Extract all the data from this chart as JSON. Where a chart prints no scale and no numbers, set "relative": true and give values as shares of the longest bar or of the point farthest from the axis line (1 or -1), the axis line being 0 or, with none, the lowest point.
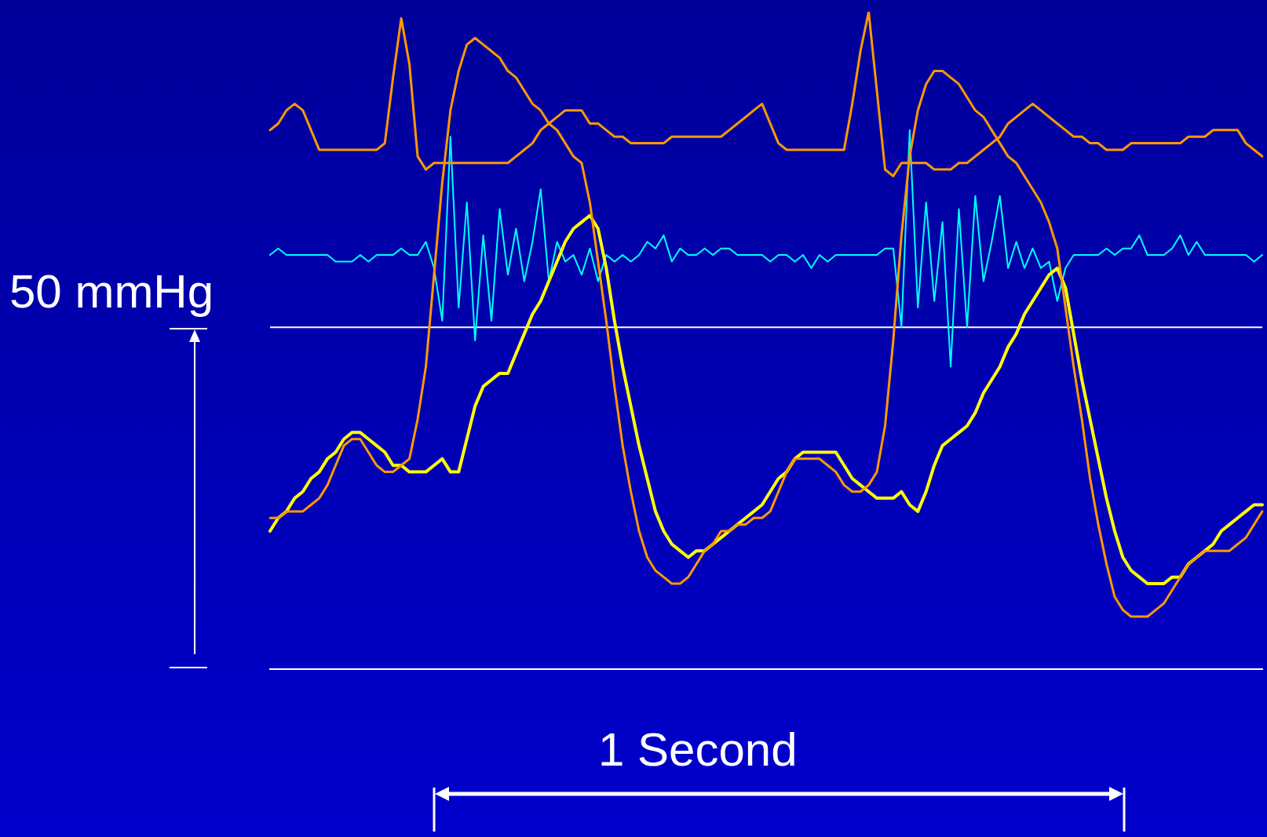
{
  "chart_data": {
    "type": "line",
    "relative": true,
    "tick_labels": false,
    "marker": "none",
    "categories": [
      null,
      null,
      null,
      null,
      null,
      null,
      null,
      null,
      null,
      null,
      null,
      null,
      null,
      null,
      null,
      null,
      null,
      null,
      null,
      null,
      null,
      null,
      null,
      null,
      null,
      null,
      null,
      null,
      null,
      null,
      null,
      null,
      null,
      null,
      null,
      null,
      null,
      null,
      null,
      null,
      null,
      null,
      null,
      null,
      null,
      null,
      null,
      null,
      null,
      null,
      null,
      null,
      null,
      null,
      null,
      null,
      null,
      null,
      null,
      null,
      null,
      null,
      null,
      null,
      null,
      null,
      null,
      null,
      null,
      null,
      null,
      null,
      null,
      null,
      null,
      null,
      null,
      null,
      null,
      null,
      null,
      null,
      null,
      null,
      null,
      null,
      null,
      null,
      null,
      null,
      null,
      null,
      null,
      null,
      null,
      null,
      null,
      null,
      null,
      null,
      null,
      null,
      null,
      null,
      null,
      null,
      null,
      null,
      null,
      null,
      null,
      null,
      null,
      null,
      null,
      null,
      null,
      null,
      null,
      null,
      null,
      null
    ],
    "series": [
      {
        "color": "#ff9900",
        "values": [
          0.82,
          0.83,
          0.85,
          0.86,
          0.85,
          0.82,
          0.79,
          0.79,
          0.79,
          0.79,
          0.79,
          0.79,
          0.79,
          0.79,
          0.8,
          0.9,
          0.99,
          0.92,
          0.78,
          0.76,
          0.77,
          0.77,
          0.77,
          0.77,
          0.77,
          0.77,
          0.77,
          0.77,
          0.77,
          0.77,
          0.78,
          0.79,
          0.8,
          0.82,
          0.83,
          0.84,
          0.85,
          0.85,
          0.85,
          0.83,
          0.83,
          0.82,
          0.81,
          0.81,
          0.8,
          0.8,
          0.8,
          0.8,
          0.8,
          0.81,
          0.81,
          0.81,
          0.81,
          0.81,
          0.81,
          0.81,
          0.82,
          0.83,
          0.84,
          0.85,
          0.86,
          0.83,
          0.8,
          0.79,
          0.79,
          0.79,
          0.79,
          0.79,
          0.79,
          0.79,
          0.79,
          0.86,
          0.94,
          1.0,
          0.88,
          0.76,
          0.75,
          0.77,
          0.77,
          0.77,
          0.77,
          0.76,
          0.76,
          0.76,
          0.77,
          0.77,
          0.78,
          0.79,
          0.8,
          0.81,
          0.83,
          0.84,
          0.85,
          0.86,
          0.85,
          0.84,
          0.83,
          0.82,
          0.81,
          0.81,
          0.8,
          0.8,
          0.79,
          0.79,
          0.79,
          0.8,
          0.8,
          0.8,
          0.8,
          0.8,
          0.8,
          0.8,
          0.81,
          0.81,
          0.81,
          0.82,
          0.82,
          0.82,
          0.82,
          0.8,
          0.79,
          0.78
        ]
      },
      {
        "color": "#ff9900",
        "values": [
          0.23,
          0.23,
          0.24,
          0.24,
          0.24,
          0.25,
          0.26,
          0.28,
          0.31,
          0.34,
          0.35,
          0.35,
          0.33,
          0.31,
          0.3,
          0.3,
          0.31,
          0.32,
          0.38,
          0.46,
          0.6,
          0.74,
          0.85,
          0.91,
          0.95,
          0.96,
          0.95,
          0.94,
          0.93,
          0.91,
          0.9,
          0.88,
          0.86,
          0.85,
          0.83,
          0.82,
          0.8,
          0.78,
          0.77,
          0.71,
          0.62,
          0.53,
          0.43,
          0.34,
          0.27,
          0.21,
          0.17,
          0.15,
          0.14,
          0.13,
          0.13,
          0.14,
          0.16,
          0.18,
          0.19,
          0.21,
          0.21,
          0.22,
          0.22,
          0.23,
          0.23,
          0.24,
          0.27,
          0.3,
          0.32,
          0.32,
          0.32,
          0.32,
          0.31,
          0.3,
          0.28,
          0.27,
          0.27,
          0.28,
          0.3,
          0.37,
          0.5,
          0.66,
          0.78,
          0.85,
          0.89,
          0.91,
          0.91,
          0.9,
          0.89,
          0.87,
          0.85,
          0.84,
          0.82,
          0.8,
          0.78,
          0.77,
          0.75,
          0.73,
          0.71,
          0.68,
          0.64,
          0.55,
          0.46,
          0.38,
          0.29,
          0.22,
          0.16,
          0.11,
          0.09,
          0.08,
          0.08,
          0.08,
          0.09,
          0.1,
          0.12,
          0.14,
          0.16,
          0.17,
          0.18,
          0.18,
          0.18,
          0.18,
          0.19,
          0.2,
          0.22,
          0.24
        ]
      },
      {
        "color": "#ffff00",
        "values": [
          0.21,
          0.23,
          0.24,
          0.26,
          0.27,
          0.29,
          0.3,
          0.32,
          0.33,
          0.35,
          0.36,
          0.36,
          0.35,
          0.34,
          0.33,
          0.31,
          0.31,
          0.3,
          0.3,
          0.3,
          0.31,
          0.32,
          0.3,
          0.3,
          0.35,
          0.4,
          0.43,
          0.44,
          0.45,
          0.45,
          0.48,
          0.51,
          0.54,
          0.56,
          0.59,
          0.62,
          0.65,
          0.67,
          0.68,
          0.69,
          0.67,
          0.61,
          0.53,
          0.46,
          0.4,
          0.34,
          0.29,
          0.24,
          0.21,
          0.19,
          0.18,
          0.17,
          0.18,
          0.18,
          0.19,
          0.2,
          0.21,
          0.22,
          0.23,
          0.24,
          0.25,
          0.27,
          0.29,
          0.3,
          0.32,
          0.33,
          0.33,
          0.33,
          0.33,
          0.33,
          0.31,
          0.29,
          0.28,
          0.27,
          0.26,
          0.26,
          0.26,
          0.27,
          0.25,
          0.24,
          0.27,
          0.31,
          0.34,
          0.35,
          0.36,
          0.37,
          0.39,
          0.42,
          0.44,
          0.46,
          0.49,
          0.51,
          0.54,
          0.56,
          0.58,
          0.6,
          0.61,
          0.58,
          0.51,
          0.44,
          0.38,
          0.32,
          0.26,
          0.21,
          0.17,
          0.15,
          0.14,
          0.13,
          0.13,
          0.13,
          0.14,
          0.14,
          0.16,
          0.17,
          0.18,
          0.19,
          0.21,
          0.22,
          0.23,
          0.24,
          0.25,
          0.25
        ]
      },
      {
        "color": "#00ffff",
        "values": [
          0.63,
          0.64,
          0.63,
          0.63,
          0.63,
          0.63,
          0.63,
          0.63,
          0.62,
          0.62,
          0.62,
          0.63,
          0.62,
          0.63,
          0.63,
          0.63,
          0.64,
          0.63,
          0.63,
          0.65,
          0.61,
          0.53,
          0.81,
          0.55,
          0.71,
          0.5,
          0.66,
          0.53,
          0.7,
          0.6,
          0.67,
          0.59,
          0.65,
          0.73,
          0.59,
          0.65,
          0.62,
          0.63,
          0.6,
          0.64,
          0.59,
          0.63,
          0.62,
          0.63,
          0.62,
          0.63,
          0.65,
          0.64,
          0.66,
          0.62,
          0.64,
          0.63,
          0.63,
          0.64,
          0.63,
          0.64,
          0.64,
          0.63,
          0.63,
          0.63,
          0.63,
          0.62,
          0.63,
          0.63,
          0.62,
          0.63,
          0.61,
          0.63,
          0.62,
          0.63,
          0.63,
          0.63,
          0.63,
          0.63,
          0.63,
          0.64,
          0.64,
          0.52,
          0.82,
          0.55,
          0.71,
          0.56,
          0.68,
          0.46,
          0.7,
          0.52,
          0.72,
          0.59,
          0.65,
          0.72,
          0.61,
          0.65,
          0.61,
          0.64,
          0.61,
          0.62,
          0.56,
          0.61,
          0.63,
          0.63,
          0.63,
          0.63,
          0.64,
          0.63,
          0.64,
          0.64,
          0.66,
          0.63,
          0.63,
          0.63,
          0.64,
          0.66,
          0.63,
          0.65,
          0.63,
          0.63,
          0.63,
          0.63,
          0.63,
          0.63,
          0.62,
          0.63
        ]
      }
    ],
    "ref_lines": [
      {
        "axis": "y",
        "value": 0.52,
        "color": "#ffffff"
      }
    ],
    "annotations": [
      "50 mmHg",
      "1 Second"
    ]
  }
}
